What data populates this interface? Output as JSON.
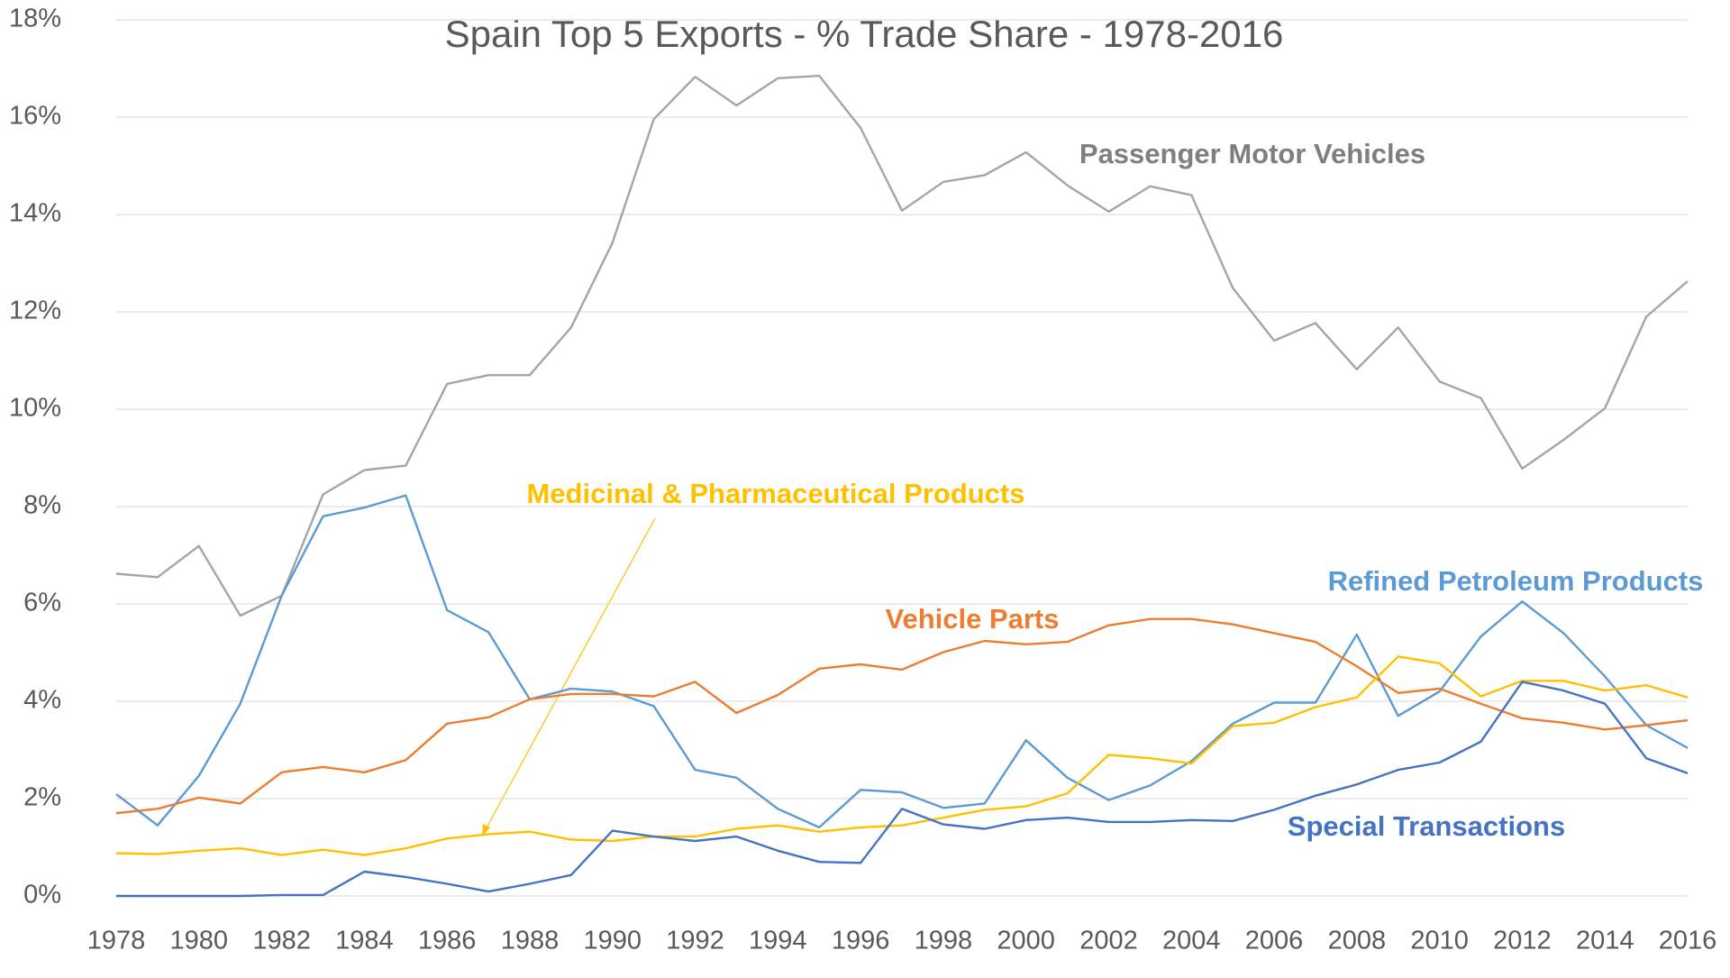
{
  "chart_data": {
    "type": "line",
    "title": "Spain Top 5 Exports - % Trade Share - 1978-2016",
    "x": [
      1978,
      1979,
      1980,
      1981,
      1982,
      1983,
      1984,
      1985,
      1986,
      1987,
      1988,
      1989,
      1990,
      1991,
      1992,
      1993,
      1994,
      1995,
      1996,
      1997,
      1998,
      1999,
      2000,
      2001,
      2002,
      2003,
      2004,
      2005,
      2006,
      2007,
      2008,
      2009,
      2010,
      2011,
      2012,
      2013,
      2014,
      2015,
      2016
    ],
    "xlim": [
      1978,
      2016
    ],
    "xticks": [
      1978,
      1980,
      1982,
      1984,
      1986,
      1988,
      1990,
      1992,
      1994,
      1996,
      1998,
      2000,
      2002,
      2004,
      2006,
      2008,
      2010,
      2012,
      2014,
      2016
    ],
    "ylim": [
      0,
      18
    ],
    "yticks": [
      {
        "value": 0,
        "label": "0%"
      },
      {
        "value": 2,
        "label": "2%"
      },
      {
        "value": 4,
        "label": "4%"
      },
      {
        "value": 6,
        "label": "6%"
      },
      {
        "value": 8,
        "label": "8%"
      },
      {
        "value": 10,
        "label": "10%"
      },
      {
        "value": 12,
        "label": "12%"
      },
      {
        "value": 14,
        "label": "14%"
      },
      {
        "value": 16,
        "label": "16%"
      },
      {
        "value": 18,
        "label": "18%"
      }
    ],
    "grid": true,
    "series": [
      {
        "name": "Passenger Motor Vehicles",
        "color": "#a5a5a5",
        "values": [
          6.62,
          6.55,
          7.19,
          5.76,
          6.17,
          8.25,
          8.75,
          8.84,
          10.52,
          10.7,
          10.7,
          11.68,
          13.42,
          15.96,
          16.83,
          16.24,
          16.8,
          16.85,
          15.78,
          14.08,
          14.67,
          14.81,
          15.28,
          14.6,
          14.06,
          14.58,
          14.4,
          12.49,
          11.41,
          11.77,
          10.82,
          11.68,
          10.57,
          10.23,
          8.78,
          9.37,
          10.02,
          11.9,
          12.63
        ]
      },
      {
        "name": "Refined Petroleum Products",
        "color": "#5b9bd5",
        "values": [
          2.09,
          1.45,
          2.47,
          3.95,
          6.17,
          7.8,
          7.98,
          8.23,
          5.87,
          5.42,
          4.04,
          4.26,
          4.2,
          3.9,
          2.59,
          2.43,
          1.79,
          1.41,
          2.18,
          2.13,
          1.81,
          1.9,
          3.2,
          2.43,
          1.97,
          2.27,
          2.77,
          3.54,
          3.97,
          3.97,
          5.37,
          3.7,
          4.2,
          5.33,
          6.05,
          5.4,
          4.51,
          3.51,
          3.04
        ]
      },
      {
        "name": "Vehicle Parts",
        "color": "#ed7d31",
        "values": [
          1.7,
          1.79,
          2.02,
          1.9,
          2.54,
          2.65,
          2.54,
          2.79,
          3.54,
          3.67,
          4.04,
          4.15,
          4.15,
          4.1,
          4.4,
          3.76,
          4.13,
          4.67,
          4.76,
          4.65,
          5.01,
          5.24,
          5.17,
          5.22,
          5.56,
          5.69,
          5.69,
          5.58,
          5.4,
          5.22,
          4.72,
          4.17,
          4.26,
          3.95,
          3.65,
          3.56,
          3.42,
          3.51,
          3.61
        ]
      },
      {
        "name": "Medicinal & Pharmaceutical Products",
        "color": "#ffc000",
        "values": [
          0.88,
          0.86,
          0.93,
          0.98,
          0.84,
          0.95,
          0.84,
          0.98,
          1.18,
          1.27,
          1.32,
          1.16,
          1.13,
          1.22,
          1.22,
          1.38,
          1.45,
          1.32,
          1.41,
          1.45,
          1.61,
          1.77,
          1.84,
          2.11,
          2.9,
          2.83,
          2.72,
          3.49,
          3.56,
          3.88,
          4.08,
          4.92,
          4.78,
          4.1,
          4.42,
          4.42,
          4.22,
          4.33,
          4.08
        ]
      },
      {
        "name": "Special Transactions",
        "color": "#4472c4",
        "values": [
          0,
          0,
          0,
          0,
          0.02,
          0.02,
          0.5,
          0.39,
          0.25,
          0.09,
          0.25,
          0.43,
          1.34,
          1.22,
          1.13,
          1.22,
          0.93,
          0.7,
          0.68,
          1.79,
          1.47,
          1.38,
          1.56,
          1.61,
          1.52,
          1.52,
          1.56,
          1.54,
          1.77,
          2.06,
          2.29,
          2.59,
          2.74,
          3.17,
          4.4,
          4.22,
          3.95,
          2.83,
          2.52
        ]
      }
    ]
  }
}
